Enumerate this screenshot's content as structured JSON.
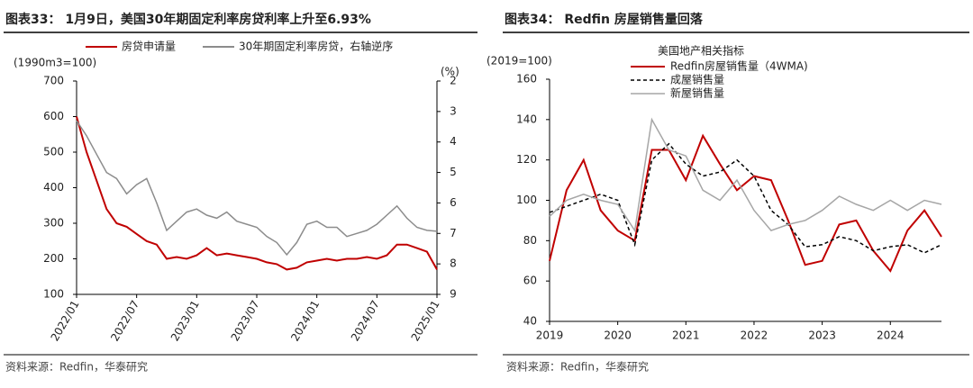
{
  "chart_data": [
    {
      "type": "line",
      "title": "图表33： 1月9日，美国30年期固定利率房贷利率上升至6.93%",
      "y_label": "(1990m3=100)",
      "y2_label": "(%)",
      "source": "资料来源：Redfin，华泰研究",
      "legend": "top",
      "x_label_rotation": -60,
      "categories": [
        "2022/01",
        null,
        null,
        null,
        null,
        null,
        "2022/07",
        null,
        null,
        null,
        null,
        null,
        "2023/01",
        null,
        null,
        null,
        null,
        null,
        "2023/07",
        null,
        null,
        null,
        null,
        null,
        "2024/01",
        null,
        null,
        null,
        null,
        null,
        "2024/07",
        null,
        null,
        null,
        null,
        null,
        "2025/01"
      ],
      "ylim": [
        100,
        700
      ],
      "yticks": [
        100,
        200,
        300,
        400,
        500,
        600,
        700
      ],
      "y2lim": [
        9,
        2
      ],
      "y2ticks": [
        2,
        3,
        4,
        5,
        6,
        7,
        8,
        9
      ],
      "series": [
        {
          "name": "房贷申请量",
          "color": "#c00000",
          "values": [
            600,
            500,
            420,
            340,
            300,
            290,
            270,
            250,
            240,
            200,
            205,
            200,
            210,
            230,
            210,
            215,
            210,
            205,
            200,
            190,
            185,
            170,
            175,
            190,
            195,
            200,
            195,
            200,
            200,
            205,
            200,
            210,
            240,
            240,
            230,
            220,
            170
          ]
        },
        {
          "name": "30年期固定利率房贷，右轴逆序",
          "color": "#8c8c8c",
          "axis": "y2",
          "values": [
            3.3,
            3.8,
            4.4,
            5.0,
            5.2,
            5.7,
            5.4,
            5.2,
            6.0,
            6.9,
            6.6,
            6.3,
            6.2,
            6.4,
            6.5,
            6.3,
            6.6,
            6.7,
            6.8,
            7.1,
            7.3,
            7.7,
            7.3,
            6.7,
            6.6,
            6.8,
            6.8,
            7.1,
            7.0,
            6.9,
            6.7,
            6.4,
            6.1,
            6.5,
            6.8,
            6.9,
            6.93
          ]
        }
      ]
    },
    {
      "type": "line",
      "title": "图表34： Redfin 房屋销售量回落",
      "y_label": "(2019=100)",
      "source": "资料来源：Redfin，华泰研究",
      "legend": "upper left",
      "legend_title": "美国地产相关指标",
      "x_label_rotation": 0,
      "categories": [
        "2019",
        null,
        null,
        null,
        "2020",
        null,
        null,
        null,
        "2021",
        null,
        null,
        null,
        "2022",
        null,
        null,
        null,
        "2023",
        null,
        null,
        null,
        "2024",
        null,
        null,
        null
      ],
      "ylim": [
        40,
        160
      ],
      "yticks": [
        40,
        60,
        80,
        100,
        120,
        140,
        160
      ],
      "series": [
        {
          "name": "Redfin房屋销售量（4WMA)",
          "color": "#c00000",
          "dash": false,
          "values": [
            70,
            105,
            120,
            95,
            85,
            80,
            125,
            125,
            110,
            132,
            118,
            105,
            112,
            110,
            90,
            68,
            70,
            88,
            90,
            75,
            65,
            85,
            95,
            82
          ]
        },
        {
          "name": "成屋销售量",
          "color": "#000000",
          "dash": true,
          "values": [
            94,
            97,
            100,
            103,
            100,
            78,
            120,
            128,
            118,
            112,
            114,
            120,
            112,
            95,
            88,
            77,
            78,
            82,
            80,
            75,
            77,
            78,
            74,
            78
          ]
        },
        {
          "name": "新屋销售量",
          "color": "#a6a6a6",
          "dash": false,
          "values": [
            92,
            100,
            103,
            100,
            98,
            85,
            140,
            125,
            122,
            105,
            100,
            110,
            95,
            85,
            88,
            90,
            95,
            102,
            98,
            95,
            100,
            95,
            100,
            98
          ]
        }
      ]
    }
  ]
}
